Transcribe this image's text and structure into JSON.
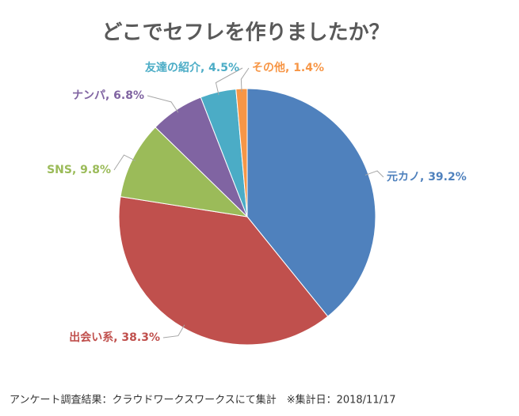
{
  "chart_data": {
    "type": "pie",
    "title": "どこでセフレを作りましたか？",
    "values": [
      39.2,
      38.3,
      9.8,
      6.8,
      4.5,
      1.4
    ],
    "value_labels": [
      "元カノ, 39.2%",
      "出会い系, 38.3%",
      "SNS, 9.8%",
      "ナンパ, 6.8%",
      "友達の紹介, 4.5%",
      "その他, 1.4%"
    ],
    "colors": [
      "#4f81bd",
      "#c0504d",
      "#9bbb59",
      "#8064a2",
      "#4bacc6",
      "#f79646"
    ],
    "note": "アンケート調査結果：クラウドワークスワークスにて集計　※集計日：2018/11/17"
  }
}
